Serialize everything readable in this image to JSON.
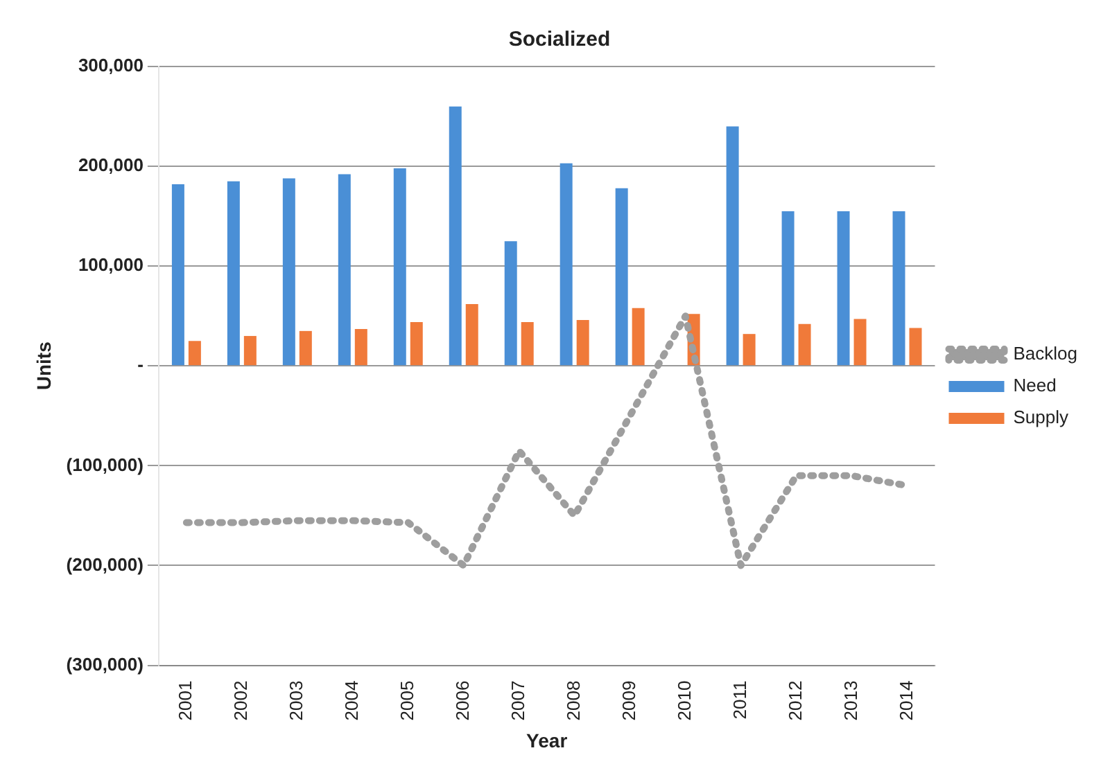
{
  "chart_data": {
    "type": "bar",
    "title": "Socialized",
    "xlabel": "Year",
    "ylabel": "Units",
    "categories": [
      "2001",
      "2002",
      "2003",
      "2004",
      "2005",
      "2006",
      "2007",
      "2008",
      "2009",
      "2010",
      "2011",
      "2012",
      "2013",
      "2014"
    ],
    "series": [
      {
        "name": "Need",
        "color": "#4a8fd6",
        "values": [
          182000,
          185000,
          188000,
          192000,
          198000,
          260000,
          125000,
          203000,
          178000,
          null,
          240000,
          155000,
          155000,
          155000
        ]
      },
      {
        "name": "Supply",
        "color": "#f07a3a",
        "values": [
          25000,
          30000,
          35000,
          37000,
          44000,
          62000,
          44000,
          46000,
          58000,
          52000,
          32000,
          42000,
          47000,
          38000
        ]
      },
      {
        "name": "Backlog",
        "type": "line",
        "color": "#9e9e9e",
        "line_style": "dotted",
        "marker": "none",
        "values": [
          -157000,
          -157000,
          -155000,
          -155000,
          -157000,
          -200000,
          -85000,
          -150000,
          -50000,
          50000,
          -200000,
          -110000,
          -110000,
          -120000
        ]
      }
    ],
    "ylim": [
      -300000,
      300000
    ],
    "yticks": [
      {
        "value": -300000,
        "label": "(300,000)"
      },
      {
        "value": -200000,
        "label": "(200,000)"
      },
      {
        "value": -100000,
        "label": "(100,000)"
      },
      {
        "value": 0,
        "label": "-"
      },
      {
        "value": 100000,
        "label": "100,000"
      },
      {
        "value": 200000,
        "label": "200,000"
      },
      {
        "value": 300000,
        "label": "300,000"
      }
    ],
    "grid": "y",
    "legend": "right"
  }
}
